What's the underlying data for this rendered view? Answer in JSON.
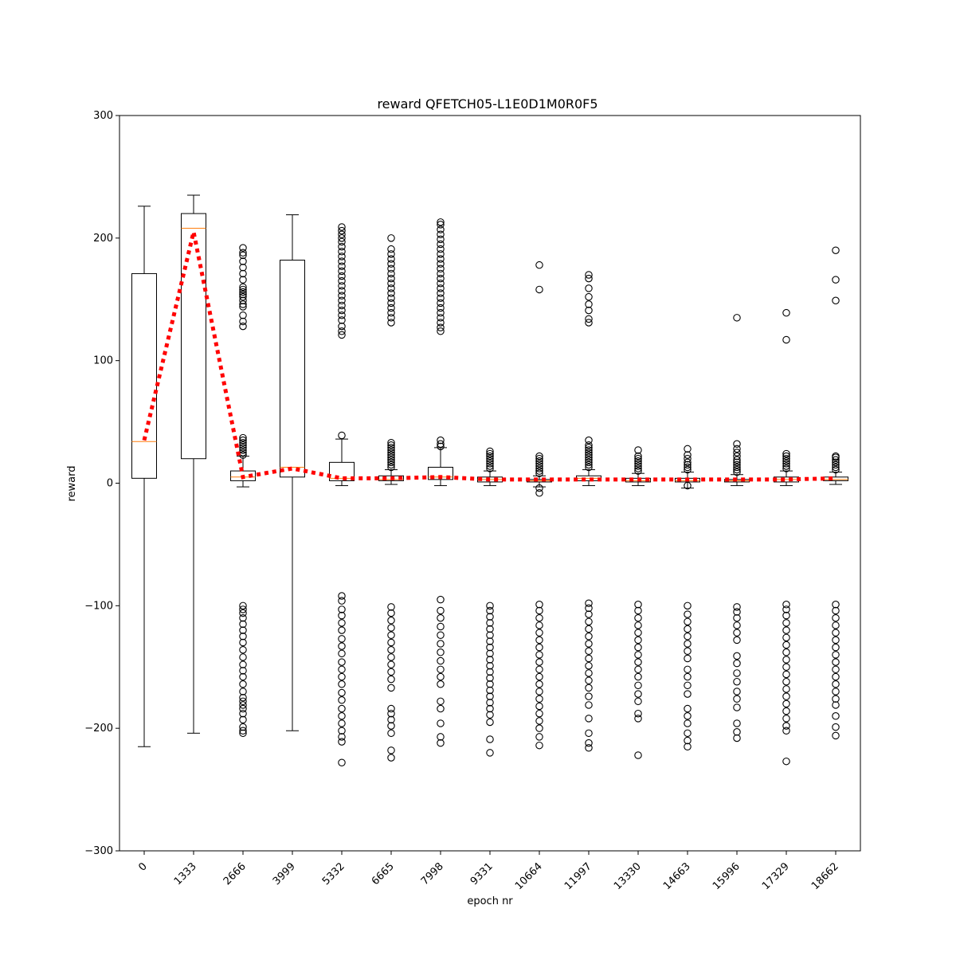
{
  "chart_data": {
    "type": "boxplot",
    "title": "reward QFETCH05-L1E0D1M0R0F5",
    "xlabel": "epoch nr",
    "ylabel": "reward",
    "ylim": [
      -300,
      300
    ],
    "yticks": [
      -300,
      -200,
      -100,
      0,
      100,
      200,
      300
    ],
    "grid": false,
    "categories": [
      "0",
      "1333",
      "2666",
      "3999",
      "5332",
      "6665",
      "7998",
      "9331",
      "10664",
      "11997",
      "13330",
      "14663",
      "15996",
      "17329",
      "18662"
    ],
    "boxes": [
      {
        "whislo": -215,
        "q1": 4,
        "med": 34,
        "q3": 171,
        "whishi": 226,
        "fliers": []
      },
      {
        "whislo": -204,
        "q1": 20,
        "med": 208,
        "q3": 220,
        "whishi": 235,
        "fliers": []
      },
      {
        "whislo": -3,
        "q1": 2,
        "med": 5,
        "q3": 10,
        "whishi": 22,
        "fliers": [
          23,
          25,
          27,
          29,
          31,
          33,
          35,
          37,
          128,
          132,
          137,
          144,
          146,
          149,
          152,
          154,
          156,
          158,
          160,
          166,
          171,
          176,
          181,
          186,
          188,
          192,
          -100,
          -103,
          -106,
          -110,
          -115,
          -120,
          -125,
          -130,
          -136,
          -142,
          -148,
          -153,
          -158,
          -164,
          -170,
          -175,
          -178,
          -181,
          -184,
          -188,
          -193,
          -199,
          -202,
          -204
        ]
      },
      {
        "whislo": -202,
        "q1": 5,
        "med": 13,
        "q3": 182,
        "whishi": 219,
        "fliers": []
      },
      {
        "whislo": -2,
        "q1": 2,
        "med": 4,
        "q3": 17,
        "whishi": 36,
        "fliers": [
          39,
          121,
          124,
          128,
          133,
          137,
          141,
          145,
          149,
          153,
          157,
          161,
          165,
          169,
          173,
          177,
          181,
          185,
          189,
          193,
          197,
          200,
          203,
          206,
          209,
          -92,
          -96,
          -103,
          -108,
          -114,
          -120,
          -127,
          -133,
          -139,
          -146,
          -152,
          -158,
          -164,
          -171,
          -177,
          -184,
          -190,
          -196,
          -202,
          -207,
          -211,
          -228
        ]
      },
      {
        "whislo": -1,
        "q1": 2,
        "med": 3,
        "q3": 6,
        "whishi": 11,
        "fliers": [
          13,
          15,
          17,
          19,
          21,
          23,
          25,
          27,
          29,
          31,
          33,
          131,
          135,
          139,
          143,
          147,
          151,
          155,
          159,
          163,
          167,
          171,
          175,
          179,
          183,
          187,
          191,
          200,
          -101,
          -106,
          -112,
          -118,
          -124,
          -130,
          -136,
          -142,
          -148,
          -154,
          -160,
          -167,
          -184,
          -188,
          -193,
          -198,
          -204,
          -218,
          -224
        ]
      },
      {
        "whislo": -2,
        "q1": 3,
        "med": 5,
        "q3": 13,
        "whishi": 29,
        "fliers": [
          30,
          32,
          35,
          124,
          127,
          131,
          135,
          139,
          143,
          147,
          151,
          155,
          159,
          163,
          167,
          171,
          175,
          179,
          183,
          187,
          191,
          195,
          199,
          203,
          207,
          211,
          213,
          -95,
          -104,
          -110,
          -117,
          -124,
          -131,
          -138,
          -145,
          -152,
          -158,
          -164,
          -178,
          -184,
          -196,
          -207,
          -212
        ]
      },
      {
        "whislo": -2,
        "q1": 1,
        "med": 3,
        "q3": 5,
        "whishi": 10,
        "fliers": [
          12,
          14,
          16,
          18,
          20,
          22,
          24,
          26,
          -100,
          -104,
          -109,
          -114,
          -119,
          -124,
          -129,
          -134,
          -139,
          -144,
          -149,
          -154,
          -159,
          -164,
          -169,
          -174,
          -179,
          -184,
          -189,
          -195,
          -209,
          -220
        ]
      },
      {
        "whislo": -3,
        "q1": 1,
        "med": 2,
        "q3": 3,
        "whishi": 6,
        "fliers": [
          8,
          10,
          12,
          14,
          16,
          18,
          20,
          22,
          -4,
          -8,
          158,
          178,
          -99,
          -104,
          -110,
          -116,
          -122,
          -128,
          -134,
          -140,
          -146,
          -152,
          -158,
          -164,
          -170,
          -176,
          -182,
          -188,
          -194,
          -200,
          -207,
          -214
        ]
      },
      {
        "whislo": -2,
        "q1": 2,
        "med": 4,
        "q3": 6,
        "whishi": 11,
        "fliers": [
          13,
          15,
          17,
          19,
          21,
          23,
          25,
          27,
          29,
          31,
          35,
          131,
          134,
          141,
          146,
          152,
          159,
          167,
          170,
          -98,
          -102,
          -107,
          -113,
          -119,
          -125,
          -131,
          -137,
          -143,
          -149,
          -155,
          -161,
          -167,
          -174,
          -181,
          -192,
          -204,
          -212,
          -216
        ]
      },
      {
        "whislo": -2,
        "q1": 1,
        "med": 2,
        "q3": 4,
        "whishi": 8,
        "fliers": [
          10,
          12,
          14,
          16,
          18,
          20,
          22,
          27,
          -99,
          -104,
          -110,
          -116,
          -122,
          -128,
          -134,
          -140,
          -146,
          -152,
          -158,
          -165,
          -172,
          -178,
          -188,
          -192,
          -222
        ]
      },
      {
        "whislo": -4,
        "q1": 1,
        "med": 2,
        "q3": 4,
        "whishi": 9,
        "fliers": [
          11,
          13,
          15,
          17,
          20,
          23,
          28,
          -2,
          -100,
          -107,
          -113,
          -119,
          -125,
          -131,
          -137,
          -143,
          -152,
          -158,
          -165,
          -172,
          -184,
          -190,
          -196,
          -204,
          -210,
          -215
        ]
      },
      {
        "whislo": -2,
        "q1": 1,
        "med": 2,
        "q3": 3,
        "whishi": 7,
        "fliers": [
          9,
          11,
          13,
          15,
          17,
          19,
          22,
          25,
          28,
          32,
          135,
          -101,
          -105,
          -110,
          -116,
          -122,
          -128,
          -141,
          -147,
          -155,
          -162,
          -170,
          -176,
          -183,
          -196,
          -203,
          -208
        ]
      },
      {
        "whislo": -2,
        "q1": 1,
        "med": 3,
        "q3": 5,
        "whishi": 10,
        "fliers": [
          12,
          14,
          16,
          18,
          20,
          22,
          24,
          117,
          139,
          -99,
          -103,
          -108,
          -114,
          -120,
          -126,
          -132,
          -138,
          -144,
          -150,
          -156,
          -162,
          -168,
          -174,
          -180,
          -186,
          -192,
          -198,
          -202,
          -227
        ]
      },
      {
        "whislo": -1,
        "q1": 2,
        "med": 3,
        "q3": 5,
        "whishi": 9,
        "fliers": [
          11,
          13,
          15,
          17,
          19,
          21,
          22,
          149,
          166,
          190,
          -99,
          -104,
          -110,
          -116,
          -122,
          -128,
          -134,
          -140,
          -146,
          -152,
          -158,
          -164,
          -170,
          -176,
          -181,
          -190,
          -199,
          -206
        ]
      }
    ],
    "mean_line": {
      "style": "dotted",
      "color": "#ff0000",
      "values": [
        35,
        205,
        5,
        12,
        4,
        4,
        5,
        3,
        3,
        3,
        3,
        3,
        3,
        3,
        4
      ]
    },
    "colors": {
      "box": "#000000",
      "median": "#ff7f0e",
      "mean_line": "#ff0000",
      "flier": "#000000"
    }
  }
}
